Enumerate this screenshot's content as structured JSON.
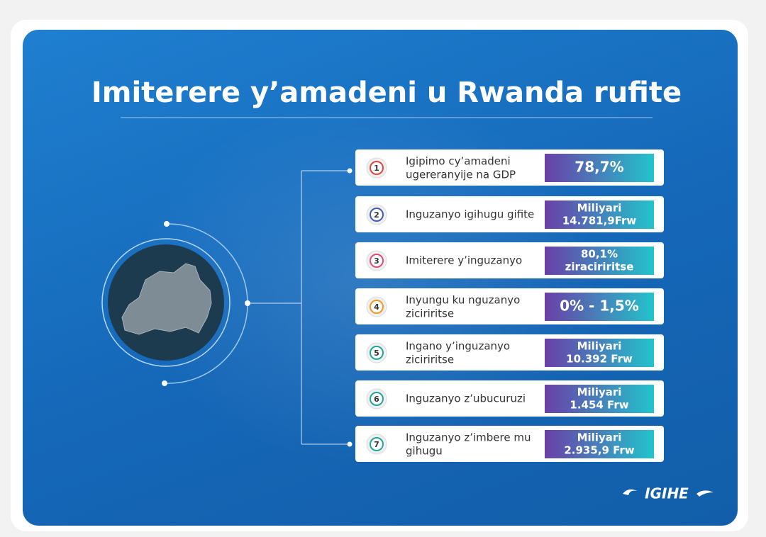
{
  "header": {
    "title": "Imiterere y’amadeni u Rwanda rufite"
  },
  "items": [
    {
      "number": 1,
      "label": "Igipimo cy’amadeni ugereranyije na GDP",
      "value": [
        "78,7%"
      ]
    },
    {
      "number": 2,
      "label": "Inguzanyo igihugu gifite",
      "value": [
        "Miliyari",
        "14.781,9Frw"
      ]
    },
    {
      "number": 3,
      "label": "Imiterere y’inguzanyo",
      "value": [
        "80,1%",
        "ziraciriritse"
      ]
    },
    {
      "number": 4,
      "label": "Inyungu ku nguzanyo ziciriritse",
      "value": [
        "0% - 1,5%"
      ]
    },
    {
      "number": 5,
      "label": "Ingano y’inguzanyo ziciriritse",
      "value": [
        "Miliyari",
        "10.392 Frw"
      ]
    },
    {
      "number": 6,
      "label": "Inguzanyo z’ubucuruzi",
      "value": [
        "Miliyari",
        "1.454 Frw"
      ]
    },
    {
      "number": 7,
      "label": "Inguzanyo z’imbere mu gihugu",
      "value": [
        "Miliyari",
        "2.935,9 Frw"
      ]
    }
  ],
  "footer": {
    "logo": "IGIHE"
  }
}
